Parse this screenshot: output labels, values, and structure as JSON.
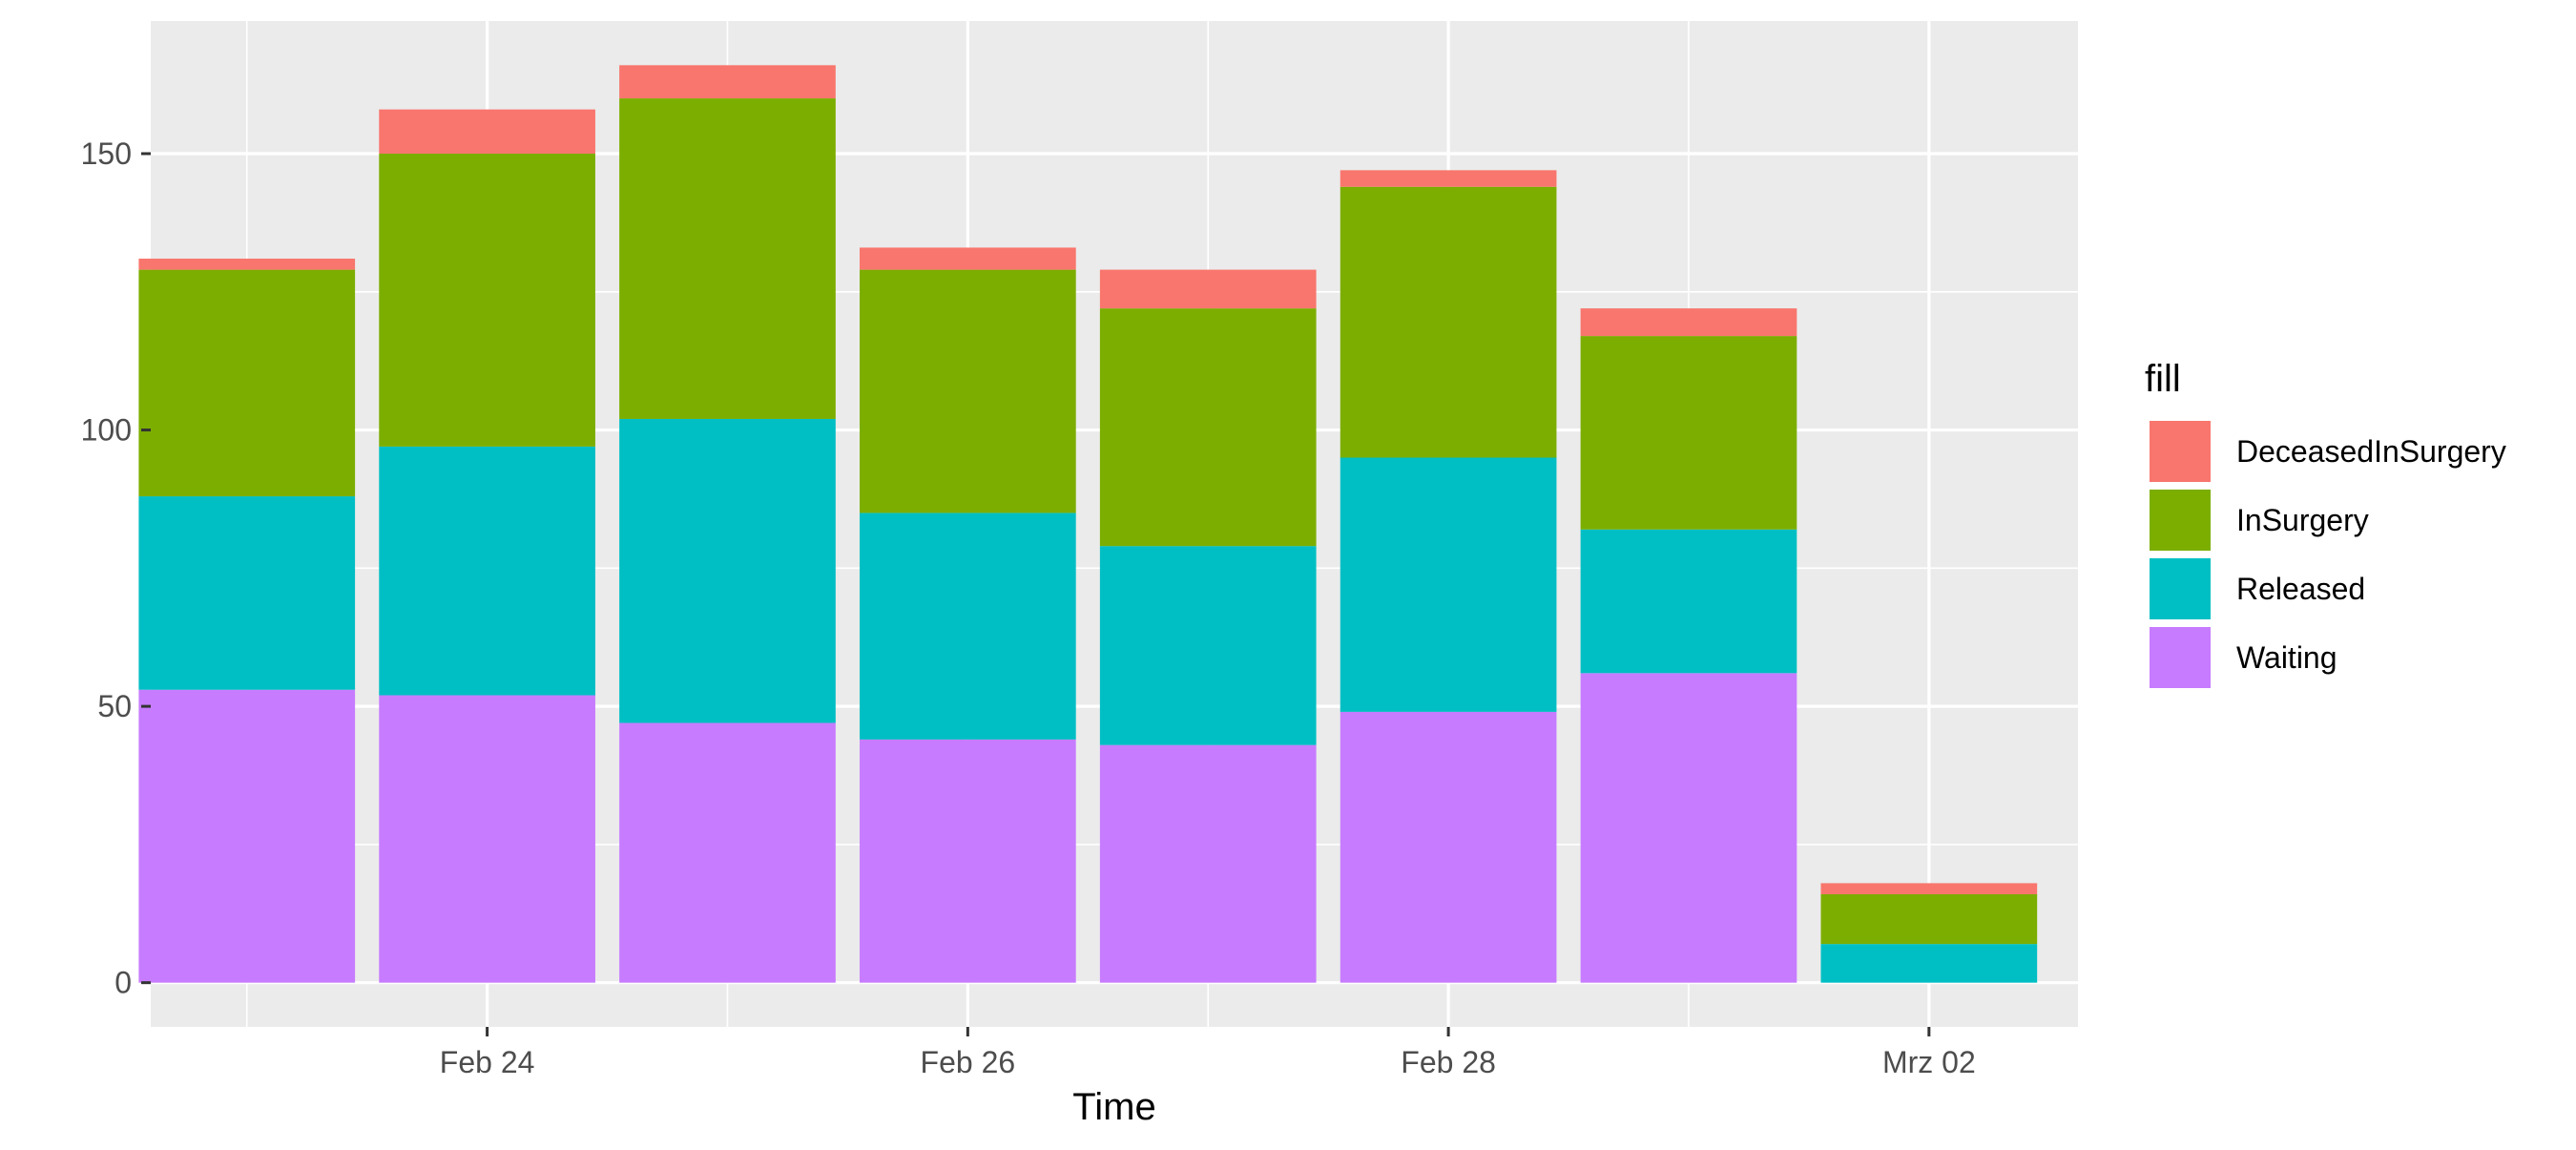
{
  "chart_data": {
    "type": "bar",
    "stacked": true,
    "title": "",
    "xlabel": "Time",
    "ylabel": "",
    "categories": [
      "Feb 23",
      "Feb 24",
      "Feb 25",
      "Feb 26",
      "Feb 27",
      "Feb 28",
      "Mar 01",
      "Mar 02"
    ],
    "x_tick_labels": [
      "Feb 24",
      "Feb 26",
      "Feb 28",
      "Mrz 02"
    ],
    "y_ticks": [
      0,
      50,
      100,
      150
    ],
    "ylim": [
      -8,
      174
    ],
    "grid": true,
    "legend_title": "fill",
    "legend_position": "right",
    "series": [
      {
        "name": "Waiting",
        "color": "#C77CFF",
        "values": [
          53,
          52,
          47,
          44,
          43,
          49,
          56,
          0
        ]
      },
      {
        "name": "Released",
        "color": "#00BFC4",
        "values": [
          35,
          45,
          55,
          41,
          36,
          46,
          26,
          7
        ]
      },
      {
        "name": "InSurgery",
        "color": "#7CAE00",
        "values": [
          41,
          53,
          58,
          44,
          43,
          49,
          35,
          9
        ]
      },
      {
        "name": "DeceasedInSurgery",
        "color": "#F8766D",
        "values": [
          2,
          8,
          6,
          4,
          7,
          3,
          5,
          2
        ]
      }
    ],
    "legend_order": [
      "DeceasedInSurgery",
      "InSurgery",
      "Released",
      "Waiting"
    ]
  }
}
